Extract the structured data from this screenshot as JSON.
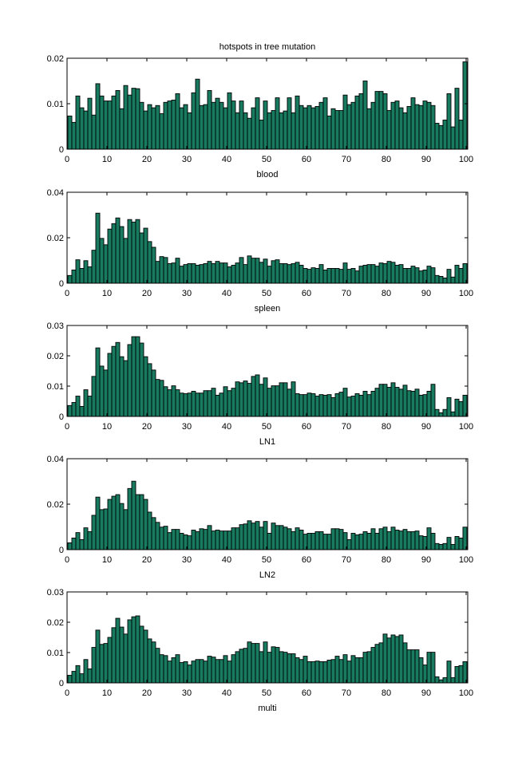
{
  "title": "hotspots in tree mutation",
  "colors": {
    "bar_fill": "#187a5e",
    "bar_edge": "#000000",
    "axes": "#000000"
  },
  "chart_data": [
    {
      "type": "bar",
      "xlabel": "blood",
      "xlim": [
        0,
        100
      ],
      "ylim": [
        0,
        0.02
      ],
      "xticks": [
        0,
        10,
        20,
        30,
        40,
        50,
        60,
        70,
        80,
        90,
        100
      ],
      "yticks": [
        0,
        0.01,
        0.02
      ],
      "ytick_labels": [
        "0",
        "0.01",
        "0.02"
      ],
      "grid": false,
      "values": [
        0.0073,
        0.0059,
        0.0117,
        0.0091,
        0.0084,
        0.0112,
        0.0075,
        0.0144,
        0.0117,
        0.0106,
        0.0106,
        0.0117,
        0.0129,
        0.0089,
        0.014,
        0.0119,
        0.0134,
        0.0133,
        0.0103,
        0.0084,
        0.0098,
        0.0091,
        0.0096,
        0.0078,
        0.0103,
        0.0106,
        0.0108,
        0.0122,
        0.0091,
        0.0098,
        0.008,
        0.0124,
        0.0154,
        0.0096,
        0.0098,
        0.0129,
        0.0103,
        0.0112,
        0.0103,
        0.0091,
        0.0124,
        0.0106,
        0.008,
        0.0106,
        0.008,
        0.0068,
        0.0091,
        0.0113,
        0.0064,
        0.0106,
        0.008,
        0.0085,
        0.0113,
        0.008,
        0.0084,
        0.0113,
        0.008,
        0.0117,
        0.0096,
        0.0091,
        0.0096,
        0.0091,
        0.0094,
        0.0103,
        0.0113,
        0.0073,
        0.0089,
        0.0085,
        0.0085,
        0.0119,
        0.0098,
        0.0103,
        0.0117,
        0.0122,
        0.015,
        0.0089,
        0.0103,
        0.0127,
        0.0127,
        0.0122,
        0.0085,
        0.0103,
        0.0106,
        0.0091,
        0.008,
        0.0094,
        0.0113,
        0.0098,
        0.0096,
        0.0106,
        0.0103,
        0.0096,
        0.0057,
        0.0052,
        0.0064,
        0.0122,
        0.0049,
        0.0134,
        0.0064,
        0.0192
      ]
    },
    {
      "type": "bar",
      "xlabel": "spleen",
      "xlim": [
        0,
        100
      ],
      "ylim": [
        0,
        0.04
      ],
      "xticks": [
        0,
        10,
        20,
        30,
        40,
        50,
        60,
        70,
        80,
        90,
        100
      ],
      "yticks": [
        0,
        0.02,
        0.04
      ],
      "ytick_labels": [
        "0",
        "0.02",
        "0.04"
      ],
      "grid": false,
      "values": [
        0.0034,
        0.0058,
        0.0103,
        0.0065,
        0.0099,
        0.0072,
        0.0145,
        0.0308,
        0.0197,
        0.0169,
        0.0238,
        0.0262,
        0.0287,
        0.0249,
        0.0197,
        0.028,
        0.0269,
        0.028,
        0.0221,
        0.0242,
        0.0183,
        0.0158,
        0.0096,
        0.0117,
        0.0113,
        0.0086,
        0.0089,
        0.011,
        0.0075,
        0.0082,
        0.0086,
        0.0086,
        0.0079,
        0.0082,
        0.0086,
        0.0096,
        0.0086,
        0.0096,
        0.0089,
        0.0089,
        0.0072,
        0.0079,
        0.0089,
        0.0113,
        0.0082,
        0.012,
        0.011,
        0.011,
        0.0092,
        0.0106,
        0.0075,
        0.0099,
        0.0103,
        0.0086,
        0.0086,
        0.0082,
        0.0086,
        0.0092,
        0.0079,
        0.0065,
        0.0061,
        0.0068,
        0.0065,
        0.0082,
        0.0058,
        0.0065,
        0.0065,
        0.0065,
        0.0061,
        0.0089,
        0.0061,
        0.0065,
        0.0054,
        0.0075,
        0.0079,
        0.0082,
        0.0082,
        0.0075,
        0.0089,
        0.0086,
        0.0096,
        0.0092,
        0.0079,
        0.0082,
        0.0065,
        0.0065,
        0.0075,
        0.0068,
        0.0054,
        0.0058,
        0.0075,
        0.0068,
        0.0034,
        0.003,
        0.0023,
        0.0061,
        0.0027,
        0.0079,
        0.0065,
        0.0086
      ]
    },
    {
      "type": "bar",
      "xlabel": "LN1",
      "xlim": [
        0,
        100
      ],
      "ylim": [
        0,
        0.03
      ],
      "xticks": [
        0,
        10,
        20,
        30,
        40,
        50,
        60,
        70,
        80,
        90,
        100
      ],
      "yticks": [
        0,
        0.01,
        0.02,
        0.03
      ],
      "ytick_labels": [
        "0",
        "0.01",
        "0.02",
        "0.03"
      ],
      "grid": false,
      "values": [
        0.0036,
        0.0046,
        0.0067,
        0.0033,
        0.0088,
        0.0067,
        0.0132,
        0.0226,
        0.0166,
        0.0153,
        0.0208,
        0.0231,
        0.0244,
        0.0197,
        0.0184,
        0.0237,
        0.0263,
        0.0263,
        0.0242,
        0.0197,
        0.0174,
        0.0153,
        0.0122,
        0.0119,
        0.0098,
        0.0088,
        0.0101,
        0.0088,
        0.0077,
        0.0075,
        0.0077,
        0.0083,
        0.0077,
        0.0077,
        0.0085,
        0.0085,
        0.0093,
        0.007,
        0.0077,
        0.0098,
        0.0085,
        0.0093,
        0.0114,
        0.0111,
        0.0117,
        0.0109,
        0.0132,
        0.0137,
        0.0106,
        0.0127,
        0.0093,
        0.0101,
        0.0101,
        0.0111,
        0.0111,
        0.009,
        0.0114,
        0.0075,
        0.0072,
        0.0072,
        0.0077,
        0.0075,
        0.0067,
        0.0072,
        0.007,
        0.0072,
        0.0062,
        0.0075,
        0.008,
        0.0093,
        0.0064,
        0.0067,
        0.0075,
        0.007,
        0.0083,
        0.0072,
        0.0083,
        0.0093,
        0.0106,
        0.0106,
        0.0096,
        0.0111,
        0.0096,
        0.009,
        0.0103,
        0.0085,
        0.0083,
        0.009,
        0.007,
        0.0072,
        0.0083,
        0.0106,
        0.0023,
        0.0012,
        0.0023,
        0.0062,
        0.0015,
        0.0057,
        0.0049,
        0.007
      ]
    },
    {
      "type": "bar",
      "xlabel": "LN2",
      "xlim": [
        0,
        100
      ],
      "ylim": [
        0,
        0.04
      ],
      "xticks": [
        0,
        10,
        20,
        30,
        40,
        50,
        60,
        70,
        80,
        90,
        100
      ],
      "yticks": [
        0,
        0.02,
        0.04
      ],
      "ytick_labels": [
        "0",
        "0.02",
        "0.04"
      ],
      "grid": false,
      "values": [
        0.003,
        0.0051,
        0.0075,
        0.0044,
        0.0096,
        0.0079,
        0.0151,
        0.0231,
        0.0176,
        0.0179,
        0.0221,
        0.0235,
        0.0242,
        0.0203,
        0.0176,
        0.0269,
        0.0301,
        0.0242,
        0.0242,
        0.0221,
        0.0165,
        0.0141,
        0.012,
        0.0099,
        0.0103,
        0.0075,
        0.0089,
        0.0089,
        0.0072,
        0.0065,
        0.0061,
        0.0086,
        0.0079,
        0.0092,
        0.0089,
        0.0106,
        0.0082,
        0.0086,
        0.0082,
        0.0082,
        0.0082,
        0.0096,
        0.0096,
        0.011,
        0.0113,
        0.0127,
        0.0117,
        0.0124,
        0.0099,
        0.0124,
        0.0072,
        0.0117,
        0.0106,
        0.0106,
        0.0099,
        0.0092,
        0.0079,
        0.0096,
        0.0086,
        0.0068,
        0.0072,
        0.0072,
        0.0079,
        0.0079,
        0.0068,
        0.0068,
        0.0092,
        0.0092,
        0.0089,
        0.0075,
        0.0044,
        0.0072,
        0.0065,
        0.0068,
        0.0079,
        0.0072,
        0.0092,
        0.0072,
        0.0092,
        0.0099,
        0.0079,
        0.0099,
        0.0086,
        0.0082,
        0.0089,
        0.0079,
        0.0079,
        0.0082,
        0.0061,
        0.0058,
        0.0096,
        0.0072,
        0.0027,
        0.0023,
        0.0027,
        0.0054,
        0.0023,
        0.0058,
        0.0051,
        0.0099
      ]
    },
    {
      "type": "bar",
      "xlabel": "multi",
      "xlim": [
        0,
        100
      ],
      "ylim": [
        0,
        0.03
      ],
      "xticks": [
        0,
        10,
        20,
        30,
        40,
        50,
        60,
        70,
        80,
        90,
        100
      ],
      "yticks": [
        0,
        0.01,
        0.02,
        0.03
      ],
      "ytick_labels": [
        "0",
        "0.01",
        "0.02",
        "0.03"
      ],
      "grid": false,
      "values": [
        0.0025,
        0.0038,
        0.0057,
        0.003,
        0.0077,
        0.0046,
        0.0117,
        0.0174,
        0.0127,
        0.013,
        0.015,
        0.0182,
        0.0213,
        0.0184,
        0.0161,
        0.0208,
        0.0218,
        0.0221,
        0.0187,
        0.0174,
        0.0145,
        0.0135,
        0.0114,
        0.0093,
        0.009,
        0.0072,
        0.0083,
        0.0093,
        0.0067,
        0.007,
        0.0059,
        0.0072,
        0.0077,
        0.0077,
        0.0072,
        0.0088,
        0.0085,
        0.0077,
        0.0077,
        0.009,
        0.0072,
        0.0093,
        0.0103,
        0.0111,
        0.0114,
        0.0135,
        0.013,
        0.013,
        0.0103,
        0.0135,
        0.0101,
        0.0119,
        0.0117,
        0.0103,
        0.0101,
        0.0096,
        0.0096,
        0.0083,
        0.0077,
        0.0088,
        0.007,
        0.007,
        0.0072,
        0.007,
        0.007,
        0.0075,
        0.0077,
        0.0088,
        0.0077,
        0.0093,
        0.0072,
        0.009,
        0.0083,
        0.0083,
        0.0101,
        0.0103,
        0.0117,
        0.0127,
        0.0132,
        0.0161,
        0.0148,
        0.0158,
        0.0153,
        0.0158,
        0.0132,
        0.0109,
        0.0109,
        0.0109,
        0.0083,
        0.0059,
        0.0101,
        0.0101,
        0.002,
        0.001,
        0.0017,
        0.0072,
        0.0017,
        0.0054,
        0.0057,
        0.007
      ]
    }
  ]
}
